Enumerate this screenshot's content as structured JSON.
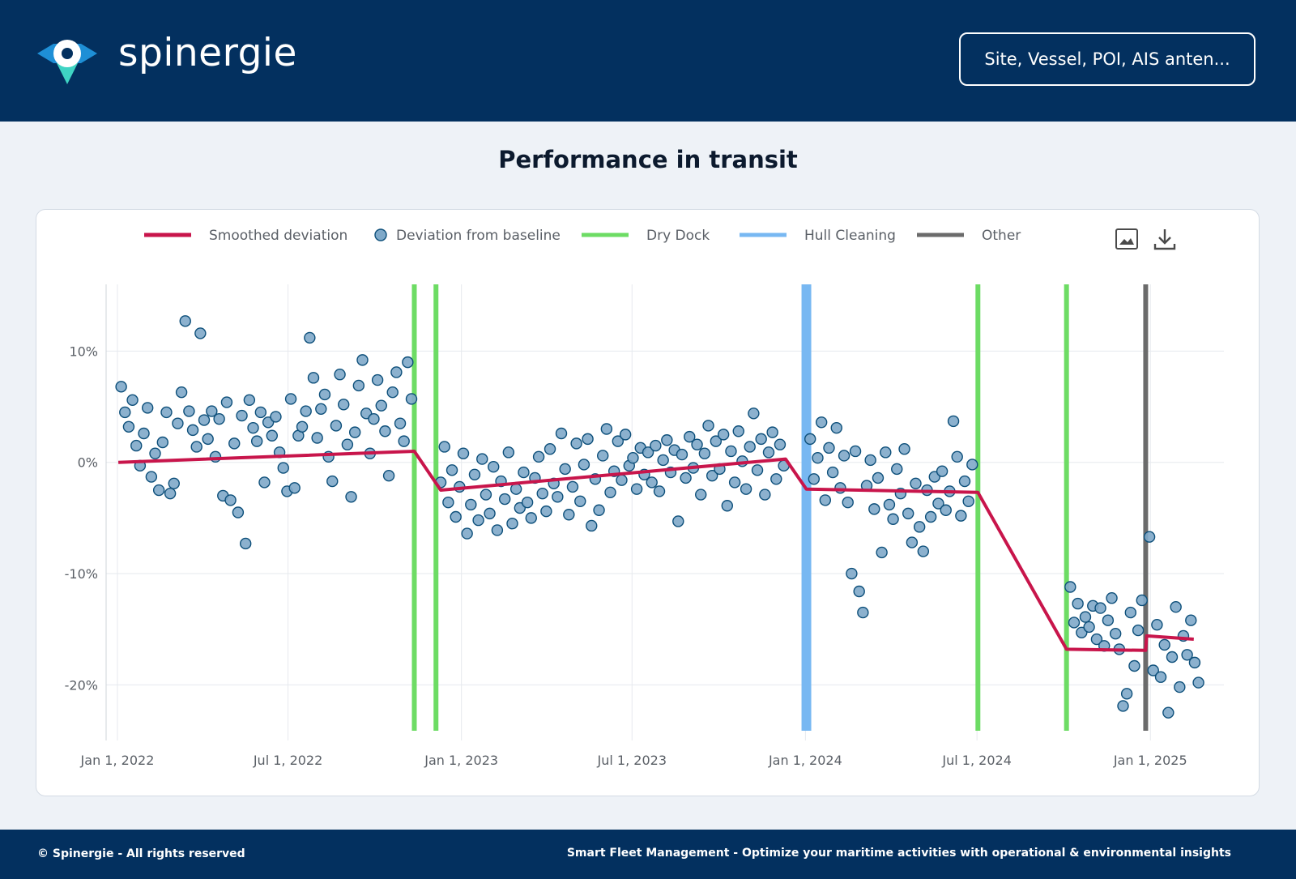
{
  "brand": {
    "name": "spinergie"
  },
  "search": {
    "placeholder": "Site, Vessel, POI, AIS anten..."
  },
  "page": {
    "title": "Performance in transit"
  },
  "footer": {
    "copyright": "© Spinergie - All rights reserved",
    "tagline": "Smart Fleet Management - Optimize your maritime activities with operational & environmental insights"
  },
  "colors": {
    "header_bg": "#03305f",
    "smoothed": "#c8154b",
    "points_fill": "#7fa9c9",
    "points_stroke": "#0d4f7a",
    "dry_dock": "#6ddc64",
    "hull_cleaning": "#78b8f2",
    "other": "#6b6b6b"
  },
  "toolbar": {
    "icons": [
      "image-download-icon",
      "download-icon"
    ]
  },
  "chart_data": {
    "type": "scatter",
    "title": "",
    "xlabel": "",
    "ylabel": "",
    "x_range": [
      "2021-12-20",
      "2025-03-20"
    ],
    "ylim": [
      -25,
      16
    ],
    "grid": true,
    "legend_position": "top",
    "x_ticks": [
      {
        "date": "2022-01-01",
        "label": "Jan 1, 2022"
      },
      {
        "date": "2022-07-01",
        "label": "Jul 1, 2022"
      },
      {
        "date": "2023-01-01",
        "label": "Jan 1, 2023"
      },
      {
        "date": "2023-07-01",
        "label": "Jul 1, 2023"
      },
      {
        "date": "2024-01-01",
        "label": "Jan 1, 2024"
      },
      {
        "date": "2024-07-01",
        "label": "Jul 1, 2024"
      },
      {
        "date": "2025-01-01",
        "label": "Jan 1, 2025"
      }
    ],
    "y_ticks": [
      {
        "value": 10,
        "label": "10%"
      },
      {
        "value": 0,
        "label": "0%"
      },
      {
        "value": -10,
        "label": "-10%"
      },
      {
        "value": -20,
        "label": "-20%"
      }
    ],
    "legend": [
      {
        "label": "Smoothed deviation",
        "kind": "line",
        "color": "#c8154b"
      },
      {
        "label": "Deviation from baseline",
        "kind": "marker",
        "color": "#7fa9c9"
      },
      {
        "label": "Dry Dock",
        "kind": "line",
        "color": "#6ddc64"
      },
      {
        "label": "Hull Cleaning",
        "kind": "line",
        "color": "#78b8f2"
      },
      {
        "label": "Other",
        "kind": "line",
        "color": "#6b6b6b"
      }
    ],
    "events": [
      {
        "type": "Dry Dock",
        "date": "2022-11-12"
      },
      {
        "type": "Dry Dock",
        "date": "2022-12-05"
      },
      {
        "type": "Hull Cleaning",
        "date": "2024-01-02"
      },
      {
        "type": "Dry Dock",
        "date": "2024-07-02"
      },
      {
        "type": "Dry Dock",
        "date": "2024-10-04"
      },
      {
        "type": "Other",
        "date": "2024-12-27"
      }
    ],
    "smoothed": [
      {
        "date": "2022-01-02",
        "y": 0.0
      },
      {
        "date": "2022-11-12",
        "y": 1.0
      },
      {
        "date": "2022-12-10",
        "y": -2.5
      },
      {
        "date": "2023-12-11",
        "y": 0.3
      },
      {
        "date": "2024-01-02",
        "y": -2.4
      },
      {
        "date": "2024-07-02",
        "y": -2.7
      },
      {
        "date": "2024-10-04",
        "y": -16.8
      },
      {
        "date": "2024-12-27",
        "y": -16.9
      },
      {
        "date": "2024-12-28",
        "y": -15.6
      },
      {
        "date": "2025-02-16",
        "y": -15.9
      }
    ],
    "deviation_points": [
      {
        "date": "2022-01-05",
        "y": 6.8
      },
      {
        "date": "2022-01-09",
        "y": 4.5
      },
      {
        "date": "2022-01-13",
        "y": 3.2
      },
      {
        "date": "2022-01-17",
        "y": 5.6
      },
      {
        "date": "2022-01-21",
        "y": 1.5
      },
      {
        "date": "2022-01-25",
        "y": -0.3
      },
      {
        "date": "2022-01-29",
        "y": 2.6
      },
      {
        "date": "2022-02-02",
        "y": 4.9
      },
      {
        "date": "2022-02-06",
        "y": -1.3
      },
      {
        "date": "2022-02-10",
        "y": 0.8
      },
      {
        "date": "2022-02-14",
        "y": -2.5
      },
      {
        "date": "2022-02-18",
        "y": 1.8
      },
      {
        "date": "2022-02-22",
        "y": 4.5
      },
      {
        "date": "2022-02-26",
        "y": -2.8
      },
      {
        "date": "2022-03-02",
        "y": -1.9
      },
      {
        "date": "2022-03-06",
        "y": 3.5
      },
      {
        "date": "2022-03-10",
        "y": 6.3
      },
      {
        "date": "2022-03-14",
        "y": 12.7
      },
      {
        "date": "2022-03-18",
        "y": 4.6
      },
      {
        "date": "2022-03-22",
        "y": 2.9
      },
      {
        "date": "2022-03-26",
        "y": 1.4
      },
      {
        "date": "2022-03-30",
        "y": 11.6
      },
      {
        "date": "2022-04-03",
        "y": 3.8
      },
      {
        "date": "2022-04-07",
        "y": 2.1
      },
      {
        "date": "2022-04-11",
        "y": 4.6
      },
      {
        "date": "2022-04-15",
        "y": 0.5
      },
      {
        "date": "2022-04-19",
        "y": 3.9
      },
      {
        "date": "2022-04-23",
        "y": -3.0
      },
      {
        "date": "2022-04-27",
        "y": 5.4
      },
      {
        "date": "2022-05-01",
        "y": -3.4
      },
      {
        "date": "2022-05-05",
        "y": 1.7
      },
      {
        "date": "2022-05-09",
        "y": -4.5
      },
      {
        "date": "2022-05-13",
        "y": 4.2
      },
      {
        "date": "2022-05-17",
        "y": -7.3
      },
      {
        "date": "2022-05-21",
        "y": 5.6
      },
      {
        "date": "2022-05-25",
        "y": 3.1
      },
      {
        "date": "2022-05-29",
        "y": 1.9
      },
      {
        "date": "2022-06-02",
        "y": 4.5
      },
      {
        "date": "2022-06-06",
        "y": -1.8
      },
      {
        "date": "2022-06-10",
        "y": 3.6
      },
      {
        "date": "2022-06-14",
        "y": 2.4
      },
      {
        "date": "2022-06-18",
        "y": 4.1
      },
      {
        "date": "2022-06-22",
        "y": 0.9
      },
      {
        "date": "2022-06-26",
        "y": -0.5
      },
      {
        "date": "2022-06-30",
        "y": -2.6
      },
      {
        "date": "2022-07-04",
        "y": 5.7
      },
      {
        "date": "2022-07-08",
        "y": -2.3
      },
      {
        "date": "2022-07-12",
        "y": 2.4
      },
      {
        "date": "2022-07-16",
        "y": 3.2
      },
      {
        "date": "2022-07-20",
        "y": 4.6
      },
      {
        "date": "2022-07-24",
        "y": 11.2
      },
      {
        "date": "2022-07-28",
        "y": 7.6
      },
      {
        "date": "2022-08-01",
        "y": 2.2
      },
      {
        "date": "2022-08-05",
        "y": 4.8
      },
      {
        "date": "2022-08-09",
        "y": 6.1
      },
      {
        "date": "2022-08-13",
        "y": 0.5
      },
      {
        "date": "2022-08-17",
        "y": -1.7
      },
      {
        "date": "2022-08-21",
        "y": 3.3
      },
      {
        "date": "2022-08-25",
        "y": 7.9
      },
      {
        "date": "2022-08-29",
        "y": 5.2
      },
      {
        "date": "2022-09-02",
        "y": 1.6
      },
      {
        "date": "2022-09-06",
        "y": -3.1
      },
      {
        "date": "2022-09-10",
        "y": 2.7
      },
      {
        "date": "2022-09-14",
        "y": 6.9
      },
      {
        "date": "2022-09-18",
        "y": 9.2
      },
      {
        "date": "2022-09-22",
        "y": 4.4
      },
      {
        "date": "2022-09-26",
        "y": 0.8
      },
      {
        "date": "2022-09-30",
        "y": 3.9
      },
      {
        "date": "2022-10-04",
        "y": 7.4
      },
      {
        "date": "2022-10-08",
        "y": 5.1
      },
      {
        "date": "2022-10-12",
        "y": 2.8
      },
      {
        "date": "2022-10-16",
        "y": -1.2
      },
      {
        "date": "2022-10-20",
        "y": 6.3
      },
      {
        "date": "2022-10-24",
        "y": 8.1
      },
      {
        "date": "2022-10-28",
        "y": 3.5
      },
      {
        "date": "2022-11-01",
        "y": 1.9
      },
      {
        "date": "2022-11-05",
        "y": 9.0
      },
      {
        "date": "2022-11-09",
        "y": 5.7
      },
      {
        "date": "2022-12-10",
        "y": -1.8
      },
      {
        "date": "2022-12-14",
        "y": 1.4
      },
      {
        "date": "2022-12-18",
        "y": -3.6
      },
      {
        "date": "2022-12-22",
        "y": -0.7
      },
      {
        "date": "2022-12-26",
        "y": -4.9
      },
      {
        "date": "2022-12-30",
        "y": -2.2
      },
      {
        "date": "2023-01-03",
        "y": 0.8
      },
      {
        "date": "2023-01-07",
        "y": -6.4
      },
      {
        "date": "2023-01-11",
        "y": -3.8
      },
      {
        "date": "2023-01-15",
        "y": -1.1
      },
      {
        "date": "2023-01-19",
        "y": -5.2
      },
      {
        "date": "2023-01-23",
        "y": 0.3
      },
      {
        "date": "2023-01-27",
        "y": -2.9
      },
      {
        "date": "2023-01-31",
        "y": -4.6
      },
      {
        "date": "2023-02-04",
        "y": -0.4
      },
      {
        "date": "2023-02-08",
        "y": -6.1
      },
      {
        "date": "2023-02-12",
        "y": -1.7
      },
      {
        "date": "2023-02-16",
        "y": -3.3
      },
      {
        "date": "2023-02-20",
        "y": 0.9
      },
      {
        "date": "2023-02-24",
        "y": -5.5
      },
      {
        "date": "2023-02-28",
        "y": -2.4
      },
      {
        "date": "2023-03-04",
        "y": -4.1
      },
      {
        "date": "2023-03-08",
        "y": -0.9
      },
      {
        "date": "2023-03-12",
        "y": -3.6
      },
      {
        "date": "2023-03-16",
        "y": -5.0
      },
      {
        "date": "2023-03-20",
        "y": -1.4
      },
      {
        "date": "2023-03-24",
        "y": 0.5
      },
      {
        "date": "2023-03-28",
        "y": -2.8
      },
      {
        "date": "2023-04-01",
        "y": -4.4
      },
      {
        "date": "2023-04-05",
        "y": 1.2
      },
      {
        "date": "2023-04-09",
        "y": -1.9
      },
      {
        "date": "2023-04-13",
        "y": -3.1
      },
      {
        "date": "2023-04-17",
        "y": 2.6
      },
      {
        "date": "2023-04-21",
        "y": -0.6
      },
      {
        "date": "2023-04-25",
        "y": -4.7
      },
      {
        "date": "2023-04-29",
        "y": -2.2
      },
      {
        "date": "2023-05-03",
        "y": 1.7
      },
      {
        "date": "2023-05-07",
        "y": -3.5
      },
      {
        "date": "2023-05-11",
        "y": -0.2
      },
      {
        "date": "2023-05-15",
        "y": 2.1
      },
      {
        "date": "2023-05-19",
        "y": -5.7
      },
      {
        "date": "2023-05-23",
        "y": -1.5
      },
      {
        "date": "2023-05-27",
        "y": -4.3
      },
      {
        "date": "2023-05-31",
        "y": 0.6
      },
      {
        "date": "2023-06-04",
        "y": 3.0
      },
      {
        "date": "2023-06-08",
        "y": -2.7
      },
      {
        "date": "2023-06-12",
        "y": -0.8
      },
      {
        "date": "2023-06-16",
        "y": 1.9
      },
      {
        "date": "2023-06-20",
        "y": -1.6
      },
      {
        "date": "2023-06-24",
        "y": 2.5
      },
      {
        "date": "2023-06-28",
        "y": -0.3
      },
      {
        "date": "2023-07-02",
        "y": 0.4
      },
      {
        "date": "2023-07-06",
        "y": -2.4
      },
      {
        "date": "2023-07-10",
        "y": 1.3
      },
      {
        "date": "2023-07-14",
        "y": -1.1
      },
      {
        "date": "2023-07-18",
        "y": 0.9
      },
      {
        "date": "2023-07-22",
        "y": -1.8
      },
      {
        "date": "2023-07-26",
        "y": 1.5
      },
      {
        "date": "2023-07-30",
        "y": -2.6
      },
      {
        "date": "2023-08-03",
        "y": 0.2
      },
      {
        "date": "2023-08-07",
        "y": 2.0
      },
      {
        "date": "2023-08-11",
        "y": -0.9
      },
      {
        "date": "2023-08-15",
        "y": 1.1
      },
      {
        "date": "2023-08-19",
        "y": -5.3
      },
      {
        "date": "2023-08-23",
        "y": 0.7
      },
      {
        "date": "2023-08-27",
        "y": -1.4
      },
      {
        "date": "2023-08-31",
        "y": 2.3
      },
      {
        "date": "2023-09-04",
        "y": -0.5
      },
      {
        "date": "2023-09-08",
        "y": 1.6
      },
      {
        "date": "2023-09-12",
        "y": -2.9
      },
      {
        "date": "2023-09-16",
        "y": 0.8
      },
      {
        "date": "2023-09-20",
        "y": 3.3
      },
      {
        "date": "2023-09-24",
        "y": -1.2
      },
      {
        "date": "2023-09-28",
        "y": 1.9
      },
      {
        "date": "2023-10-02",
        "y": -0.6
      },
      {
        "date": "2023-10-06",
        "y": 2.5
      },
      {
        "date": "2023-10-10",
        "y": -3.9
      },
      {
        "date": "2023-10-14",
        "y": 1.0
      },
      {
        "date": "2023-10-18",
        "y": -1.8
      },
      {
        "date": "2023-10-22",
        "y": 2.8
      },
      {
        "date": "2023-10-26",
        "y": 0.1
      },
      {
        "date": "2023-10-30",
        "y": -2.4
      },
      {
        "date": "2023-11-03",
        "y": 1.4
      },
      {
        "date": "2023-11-07",
        "y": 4.4
      },
      {
        "date": "2023-11-11",
        "y": -0.7
      },
      {
        "date": "2023-11-15",
        "y": 2.1
      },
      {
        "date": "2023-11-19",
        "y": -2.9
      },
      {
        "date": "2023-11-23",
        "y": 0.9
      },
      {
        "date": "2023-11-27",
        "y": 2.7
      },
      {
        "date": "2023-12-01",
        "y": -1.5
      },
      {
        "date": "2023-12-05",
        "y": 1.6
      },
      {
        "date": "2023-12-09",
        "y": -0.3
      },
      {
        "date": "2024-01-06",
        "y": 2.1
      },
      {
        "date": "2024-01-10",
        "y": -1.5
      },
      {
        "date": "2024-01-14",
        "y": 0.4
      },
      {
        "date": "2024-01-18",
        "y": 3.6
      },
      {
        "date": "2024-01-22",
        "y": -3.4
      },
      {
        "date": "2024-01-26",
        "y": 1.3
      },
      {
        "date": "2024-01-30",
        "y": -0.9
      },
      {
        "date": "2024-02-03",
        "y": 3.1
      },
      {
        "date": "2024-02-07",
        "y": -2.3
      },
      {
        "date": "2024-02-11",
        "y": 0.6
      },
      {
        "date": "2024-02-15",
        "y": -3.6
      },
      {
        "date": "2024-02-19",
        "y": -10.0
      },
      {
        "date": "2024-02-23",
        "y": 1.0
      },
      {
        "date": "2024-02-27",
        "y": -11.6
      },
      {
        "date": "2024-03-02",
        "y": -13.5
      },
      {
        "date": "2024-03-06",
        "y": -2.1
      },
      {
        "date": "2024-03-10",
        "y": 0.2
      },
      {
        "date": "2024-03-14",
        "y": -4.2
      },
      {
        "date": "2024-03-18",
        "y": -1.4
      },
      {
        "date": "2024-03-22",
        "y": -8.1
      },
      {
        "date": "2024-03-26",
        "y": 0.9
      },
      {
        "date": "2024-03-30",
        "y": -3.8
      },
      {
        "date": "2024-04-03",
        "y": -5.1
      },
      {
        "date": "2024-04-07",
        "y": -0.6
      },
      {
        "date": "2024-04-11",
        "y": -2.8
      },
      {
        "date": "2024-04-15",
        "y": 1.2
      },
      {
        "date": "2024-04-19",
        "y": -4.6
      },
      {
        "date": "2024-04-23",
        "y": -7.2
      },
      {
        "date": "2024-04-27",
        "y": -1.9
      },
      {
        "date": "2024-05-01",
        "y": -5.8
      },
      {
        "date": "2024-05-05",
        "y": -8.0
      },
      {
        "date": "2024-05-09",
        "y": -2.5
      },
      {
        "date": "2024-05-13",
        "y": -4.9
      },
      {
        "date": "2024-05-17",
        "y": -1.3
      },
      {
        "date": "2024-05-21",
        "y": -3.7
      },
      {
        "date": "2024-05-25",
        "y": -0.8
      },
      {
        "date": "2024-05-29",
        "y": -4.3
      },
      {
        "date": "2024-06-02",
        "y": -2.6
      },
      {
        "date": "2024-06-06",
        "y": 3.7
      },
      {
        "date": "2024-06-10",
        "y": 0.5
      },
      {
        "date": "2024-06-14",
        "y": -4.8
      },
      {
        "date": "2024-06-18",
        "y": -1.7
      },
      {
        "date": "2024-06-22",
        "y": -3.5
      },
      {
        "date": "2024-06-26",
        "y": -0.2
      },
      {
        "date": "2024-10-08",
        "y": -11.2
      },
      {
        "date": "2024-10-12",
        "y": -14.4
      },
      {
        "date": "2024-10-16",
        "y": -12.7
      },
      {
        "date": "2024-10-20",
        "y": -15.3
      },
      {
        "date": "2024-10-24",
        "y": -13.9
      },
      {
        "date": "2024-10-28",
        "y": -14.8
      },
      {
        "date": "2024-11-01",
        "y": -12.9
      },
      {
        "date": "2024-11-05",
        "y": -15.9
      },
      {
        "date": "2024-11-09",
        "y": -13.1
      },
      {
        "date": "2024-11-13",
        "y": -16.5
      },
      {
        "date": "2024-11-17",
        "y": -14.2
      },
      {
        "date": "2024-11-21",
        "y": -12.2
      },
      {
        "date": "2024-11-25",
        "y": -15.4
      },
      {
        "date": "2024-11-29",
        "y": -16.8
      },
      {
        "date": "2024-12-03",
        "y": -21.9
      },
      {
        "date": "2024-12-07",
        "y": -20.8
      },
      {
        "date": "2024-12-11",
        "y": -13.5
      },
      {
        "date": "2024-12-15",
        "y": -18.3
      },
      {
        "date": "2024-12-19",
        "y": -15.1
      },
      {
        "date": "2024-12-23",
        "y": -12.4
      },
      {
        "date": "2024-12-31",
        "y": -6.7
      },
      {
        "date": "2025-01-04",
        "y": -18.7
      },
      {
        "date": "2025-01-08",
        "y": -14.6
      },
      {
        "date": "2025-01-12",
        "y": -19.3
      },
      {
        "date": "2025-01-16",
        "y": -16.4
      },
      {
        "date": "2025-01-20",
        "y": -22.5
      },
      {
        "date": "2025-01-24",
        "y": -17.5
      },
      {
        "date": "2025-01-28",
        "y": -13.0
      },
      {
        "date": "2025-02-01",
        "y": -20.2
      },
      {
        "date": "2025-02-05",
        "y": -15.6
      },
      {
        "date": "2025-02-09",
        "y": -17.3
      },
      {
        "date": "2025-02-13",
        "y": -14.2
      },
      {
        "date": "2025-02-17",
        "y": -18.0
      },
      {
        "date": "2025-02-21",
        "y": -19.8
      }
    ]
  }
}
